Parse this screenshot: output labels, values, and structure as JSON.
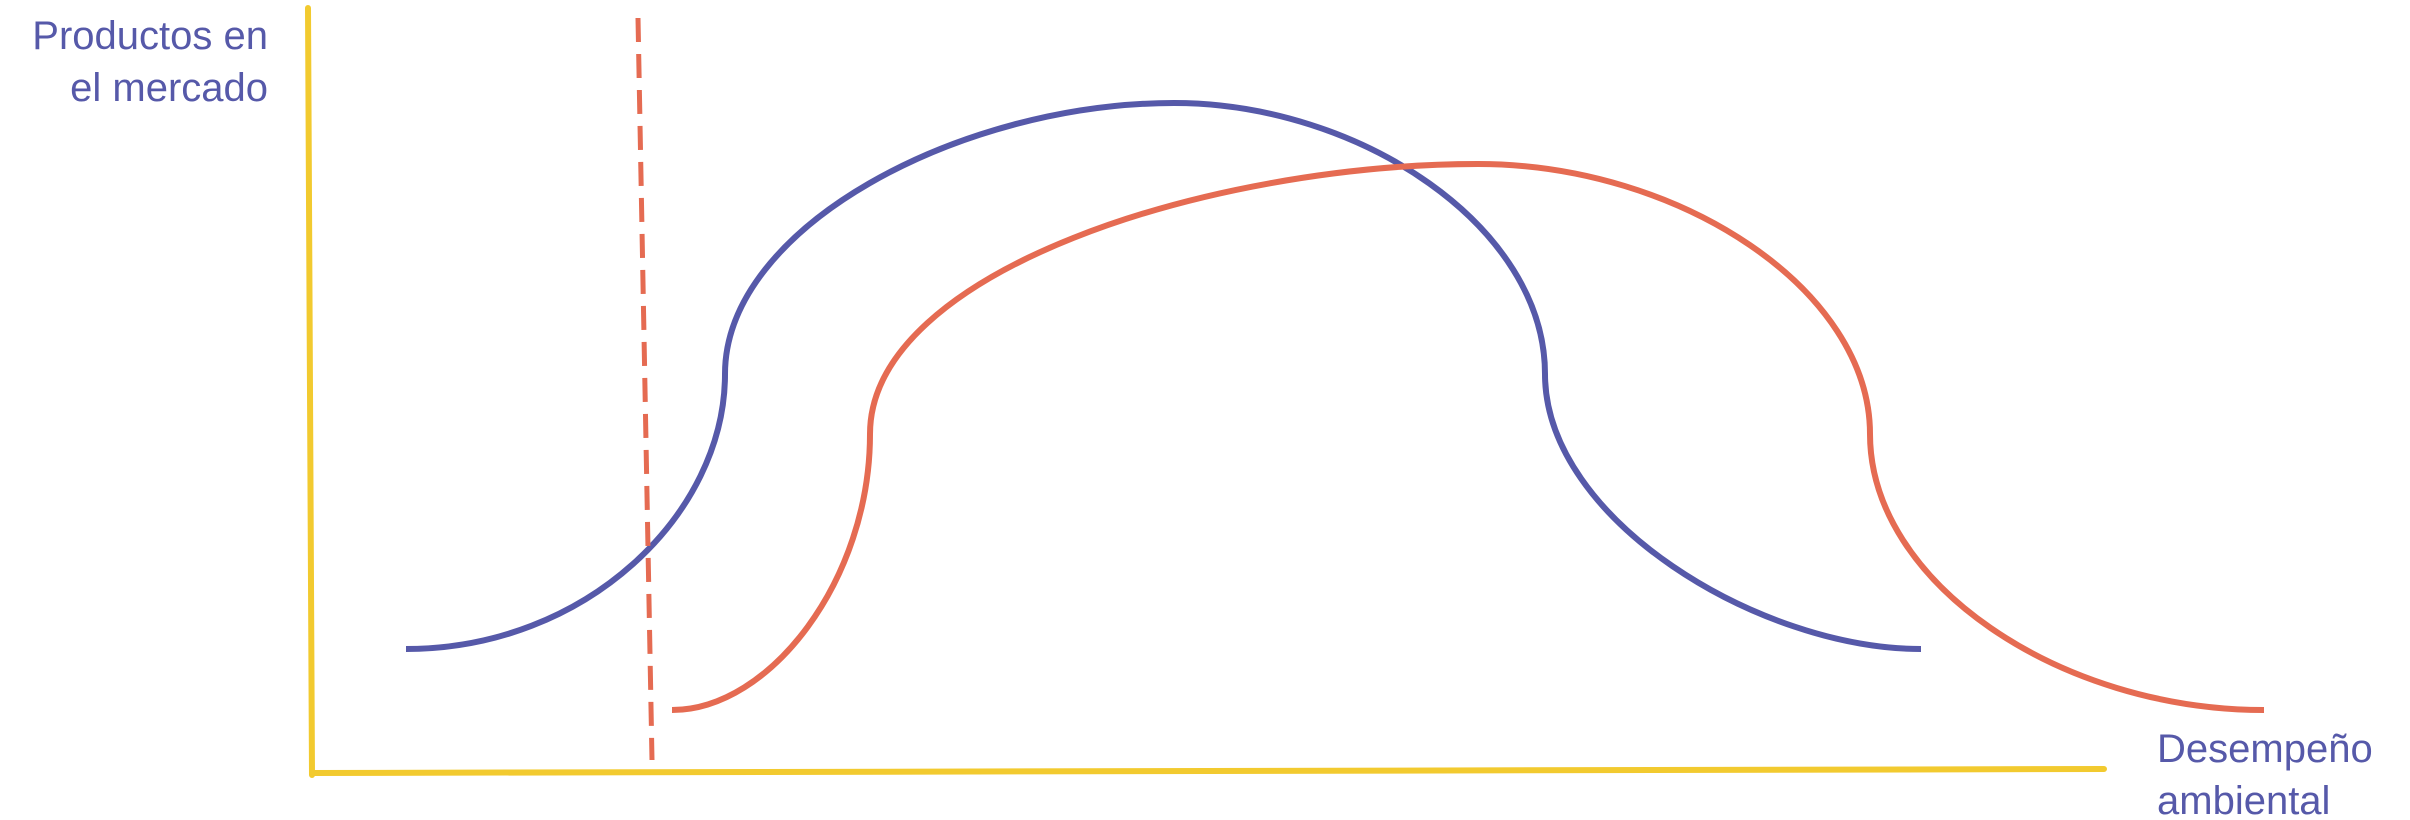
{
  "labels": {
    "y_axis": {
      "line1": "Productos en",
      "line2": "el mercado"
    },
    "x_axis": {
      "line1": "Desempeño",
      "line2": "ambiental"
    }
  },
  "colors": {
    "axes": "#f2ca2f",
    "curve_1": "#5659a9",
    "curve_2": "#e56b52",
    "threshold_line": "#e56b52",
    "text": "#5659a9"
  },
  "diagram": {
    "curves": [
      {
        "id": "curve-1"
      },
      {
        "id": "curve-2"
      }
    ],
    "threshold": {
      "style": "dashed"
    }
  }
}
